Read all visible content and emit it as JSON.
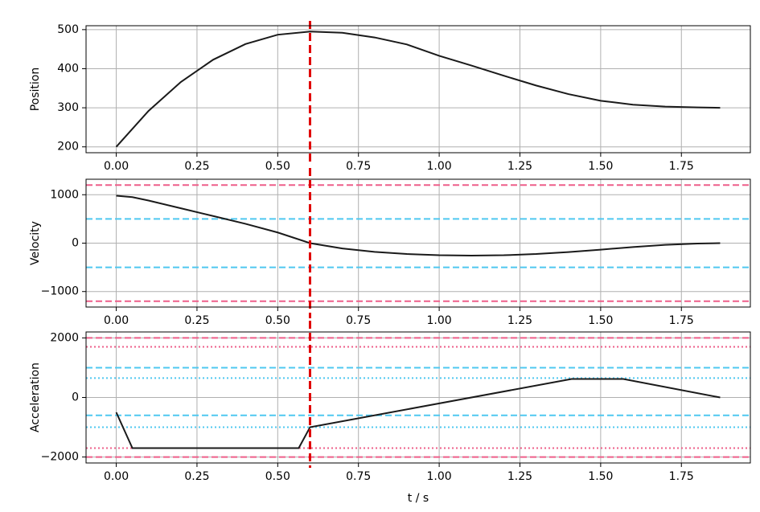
{
  "chart_data": [
    {
      "type": "line",
      "ylabel": "Position",
      "x": [
        0,
        0.1,
        0.2,
        0.3,
        0.4,
        0.5,
        0.6,
        0.7,
        0.8,
        0.9,
        1.0,
        1.1,
        1.2,
        1.3,
        1.4,
        1.5,
        1.6,
        1.7,
        1.8,
        1.87
      ],
      "series": [
        {
          "color": "#1a1a1a",
          "values": [
            200,
            292,
            366,
            423,
            463,
            487,
            495,
            492,
            480,
            462,
            433,
            408,
            382,
            357,
            335,
            318,
            308,
            303,
            301,
            300
          ]
        }
      ],
      "xlim": [
        -0.0935,
        1.9635
      ],
      "xticks": [
        {
          "value": 0,
          "label": "0.00"
        },
        {
          "value": 0.25,
          "label": "0.25"
        },
        {
          "value": 0.5,
          "label": "0.50"
        },
        {
          "value": 0.75,
          "label": "0.75"
        },
        {
          "value": 1,
          "label": "1.00"
        },
        {
          "value": 1.25,
          "label": "1.25"
        },
        {
          "value": 1.5,
          "label": "1.50"
        },
        {
          "value": 1.75,
          "label": "1.75"
        }
      ],
      "ylim": [
        185,
        510
      ],
      "yticks": [
        200,
        300,
        400,
        500
      ],
      "grid": true,
      "hlines": [],
      "vline": 0.6,
      "vline_color": "#e00000"
    },
    {
      "type": "line",
      "ylabel": "Velocity",
      "x": [
        0,
        0.05,
        0.1,
        0.2,
        0.3,
        0.4,
        0.5,
        0.6,
        0.7,
        0.8,
        0.9,
        1.0,
        1.1,
        1.2,
        1.3,
        1.4,
        1.5,
        1.6,
        1.7,
        1.8,
        1.87
      ],
      "series": [
        {
          "color": "#1a1a1a",
          "values": [
            980,
            950,
            880,
            720,
            560,
            400,
            220,
            0,
            -110,
            -180,
            -225,
            -250,
            -258,
            -250,
            -225,
            -185,
            -135,
            -80,
            -35,
            -8,
            0
          ]
        }
      ],
      "xlim": [
        -0.0935,
        1.9635
      ],
      "xticks": [
        {
          "value": 0,
          "label": "0.00"
        },
        {
          "value": 0.25,
          "label": "0.25"
        },
        {
          "value": 0.5,
          "label": "0.50"
        },
        {
          "value": 0.75,
          "label": "0.75"
        },
        {
          "value": 1,
          "label": "1.00"
        },
        {
          "value": 1.25,
          "label": "1.25"
        },
        {
          "value": 1.5,
          "label": "1.50"
        },
        {
          "value": 1.75,
          "label": "1.75"
        }
      ],
      "ylim": [
        -1320,
        1320
      ],
      "yticks": [
        {
          "value": -1000,
          "label": "−1000"
        },
        0,
        1000
      ],
      "grid": true,
      "hlines": [
        {
          "value": 1200,
          "color": "#ee5f8a",
          "style": "dashed"
        },
        {
          "value": -1200,
          "color": "#ee5f8a",
          "style": "dashed"
        },
        {
          "value": 500,
          "color": "#4fc8f0",
          "style": "dashed"
        },
        {
          "value": -500,
          "color": "#4fc8f0",
          "style": "dashed"
        }
      ],
      "vline": 0.6,
      "vline_color": "#e00000"
    },
    {
      "type": "line",
      "ylabel": "Acceleration",
      "xlabel": "t / s",
      "x": [
        0,
        0.05,
        0.565,
        0.6,
        1.41,
        1.57,
        1.87
      ],
      "series": [
        {
          "color": "#1a1a1a",
          "values": [
            -500,
            -1700,
            -1700,
            -1000,
            620,
            620,
            0
          ]
        }
      ],
      "xlim": [
        -0.0935,
        1.9635
      ],
      "xticks": [
        {
          "value": 0,
          "label": "0.00"
        },
        {
          "value": 0.25,
          "label": "0.25"
        },
        {
          "value": 0.5,
          "label": "0.50"
        },
        {
          "value": 0.75,
          "label": "0.75"
        },
        {
          "value": 1,
          "label": "1.00"
        },
        {
          "value": 1.25,
          "label": "1.25"
        },
        {
          "value": 1.5,
          "label": "1.50"
        },
        {
          "value": 1.75,
          "label": "1.75"
        }
      ],
      "ylim": [
        -2200,
        2200
      ],
      "yticks": [
        {
          "value": -2000,
          "label": "−2000"
        },
        0,
        2000
      ],
      "grid": true,
      "hlines": [
        {
          "value": 2000,
          "color": "#ee5f8a",
          "style": "dashed"
        },
        {
          "value": -2000,
          "color": "#ee5f8a",
          "style": "dashed"
        },
        {
          "value": 1700,
          "color": "#ee5f8a",
          "style": "dotted"
        },
        {
          "value": -1700,
          "color": "#ee5f8a",
          "style": "dotted"
        },
        {
          "value": 1000,
          "color": "#4fc8f0",
          "style": "dashed"
        },
        {
          "value": -600,
          "color": "#4fc8f0",
          "style": "dashed"
        },
        {
          "value": 650,
          "color": "#4fc8f0",
          "style": "dotted"
        },
        {
          "value": -1000,
          "color": "#4fc8f0",
          "style": "dotted"
        }
      ],
      "vline": 0.6,
      "vline_color": "#e00000"
    }
  ]
}
